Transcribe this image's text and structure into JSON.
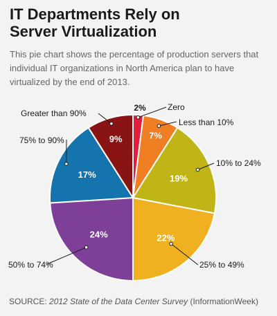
{
  "title": "IT Departments Rely on\nServer Virtualization",
  "subtitle": "This pie chart shows the percentage of production servers that individual IT organizations in North America plan to have virtualized by the end of 2013.",
  "source": {
    "prefix": "SOURCE: ",
    "title": "2012 State of the Data Center Survey",
    "suffix": " (InformationWeek)"
  },
  "chart_data": {
    "type": "pie",
    "start_angle": "12 o'clock",
    "direction": "clockwise",
    "slices": [
      {
        "label": "Zero",
        "value": 2,
        "value_label": "2%",
        "color": "#e31d3c"
      },
      {
        "label": "Less than 10%",
        "value": 7,
        "value_label": "7%",
        "color": "#f07f23"
      },
      {
        "label": "10% to 24%",
        "value": 19,
        "value_label": "19%",
        "color": "#c0b416"
      },
      {
        "label": "25% to 49%",
        "value": 22,
        "value_label": "22%",
        "color": "#efb11f"
      },
      {
        "label": "50% to 74%",
        "value": 24,
        "value_label": "24%",
        "color": "#7d3f98"
      },
      {
        "label": "75% to 90%",
        "value": 17,
        "value_label": "17%",
        "color": "#1573ae"
      },
      {
        "label": "Greater than 90%",
        "value": 9,
        "value_label": "9%",
        "color": "#8a1313"
      }
    ]
  }
}
